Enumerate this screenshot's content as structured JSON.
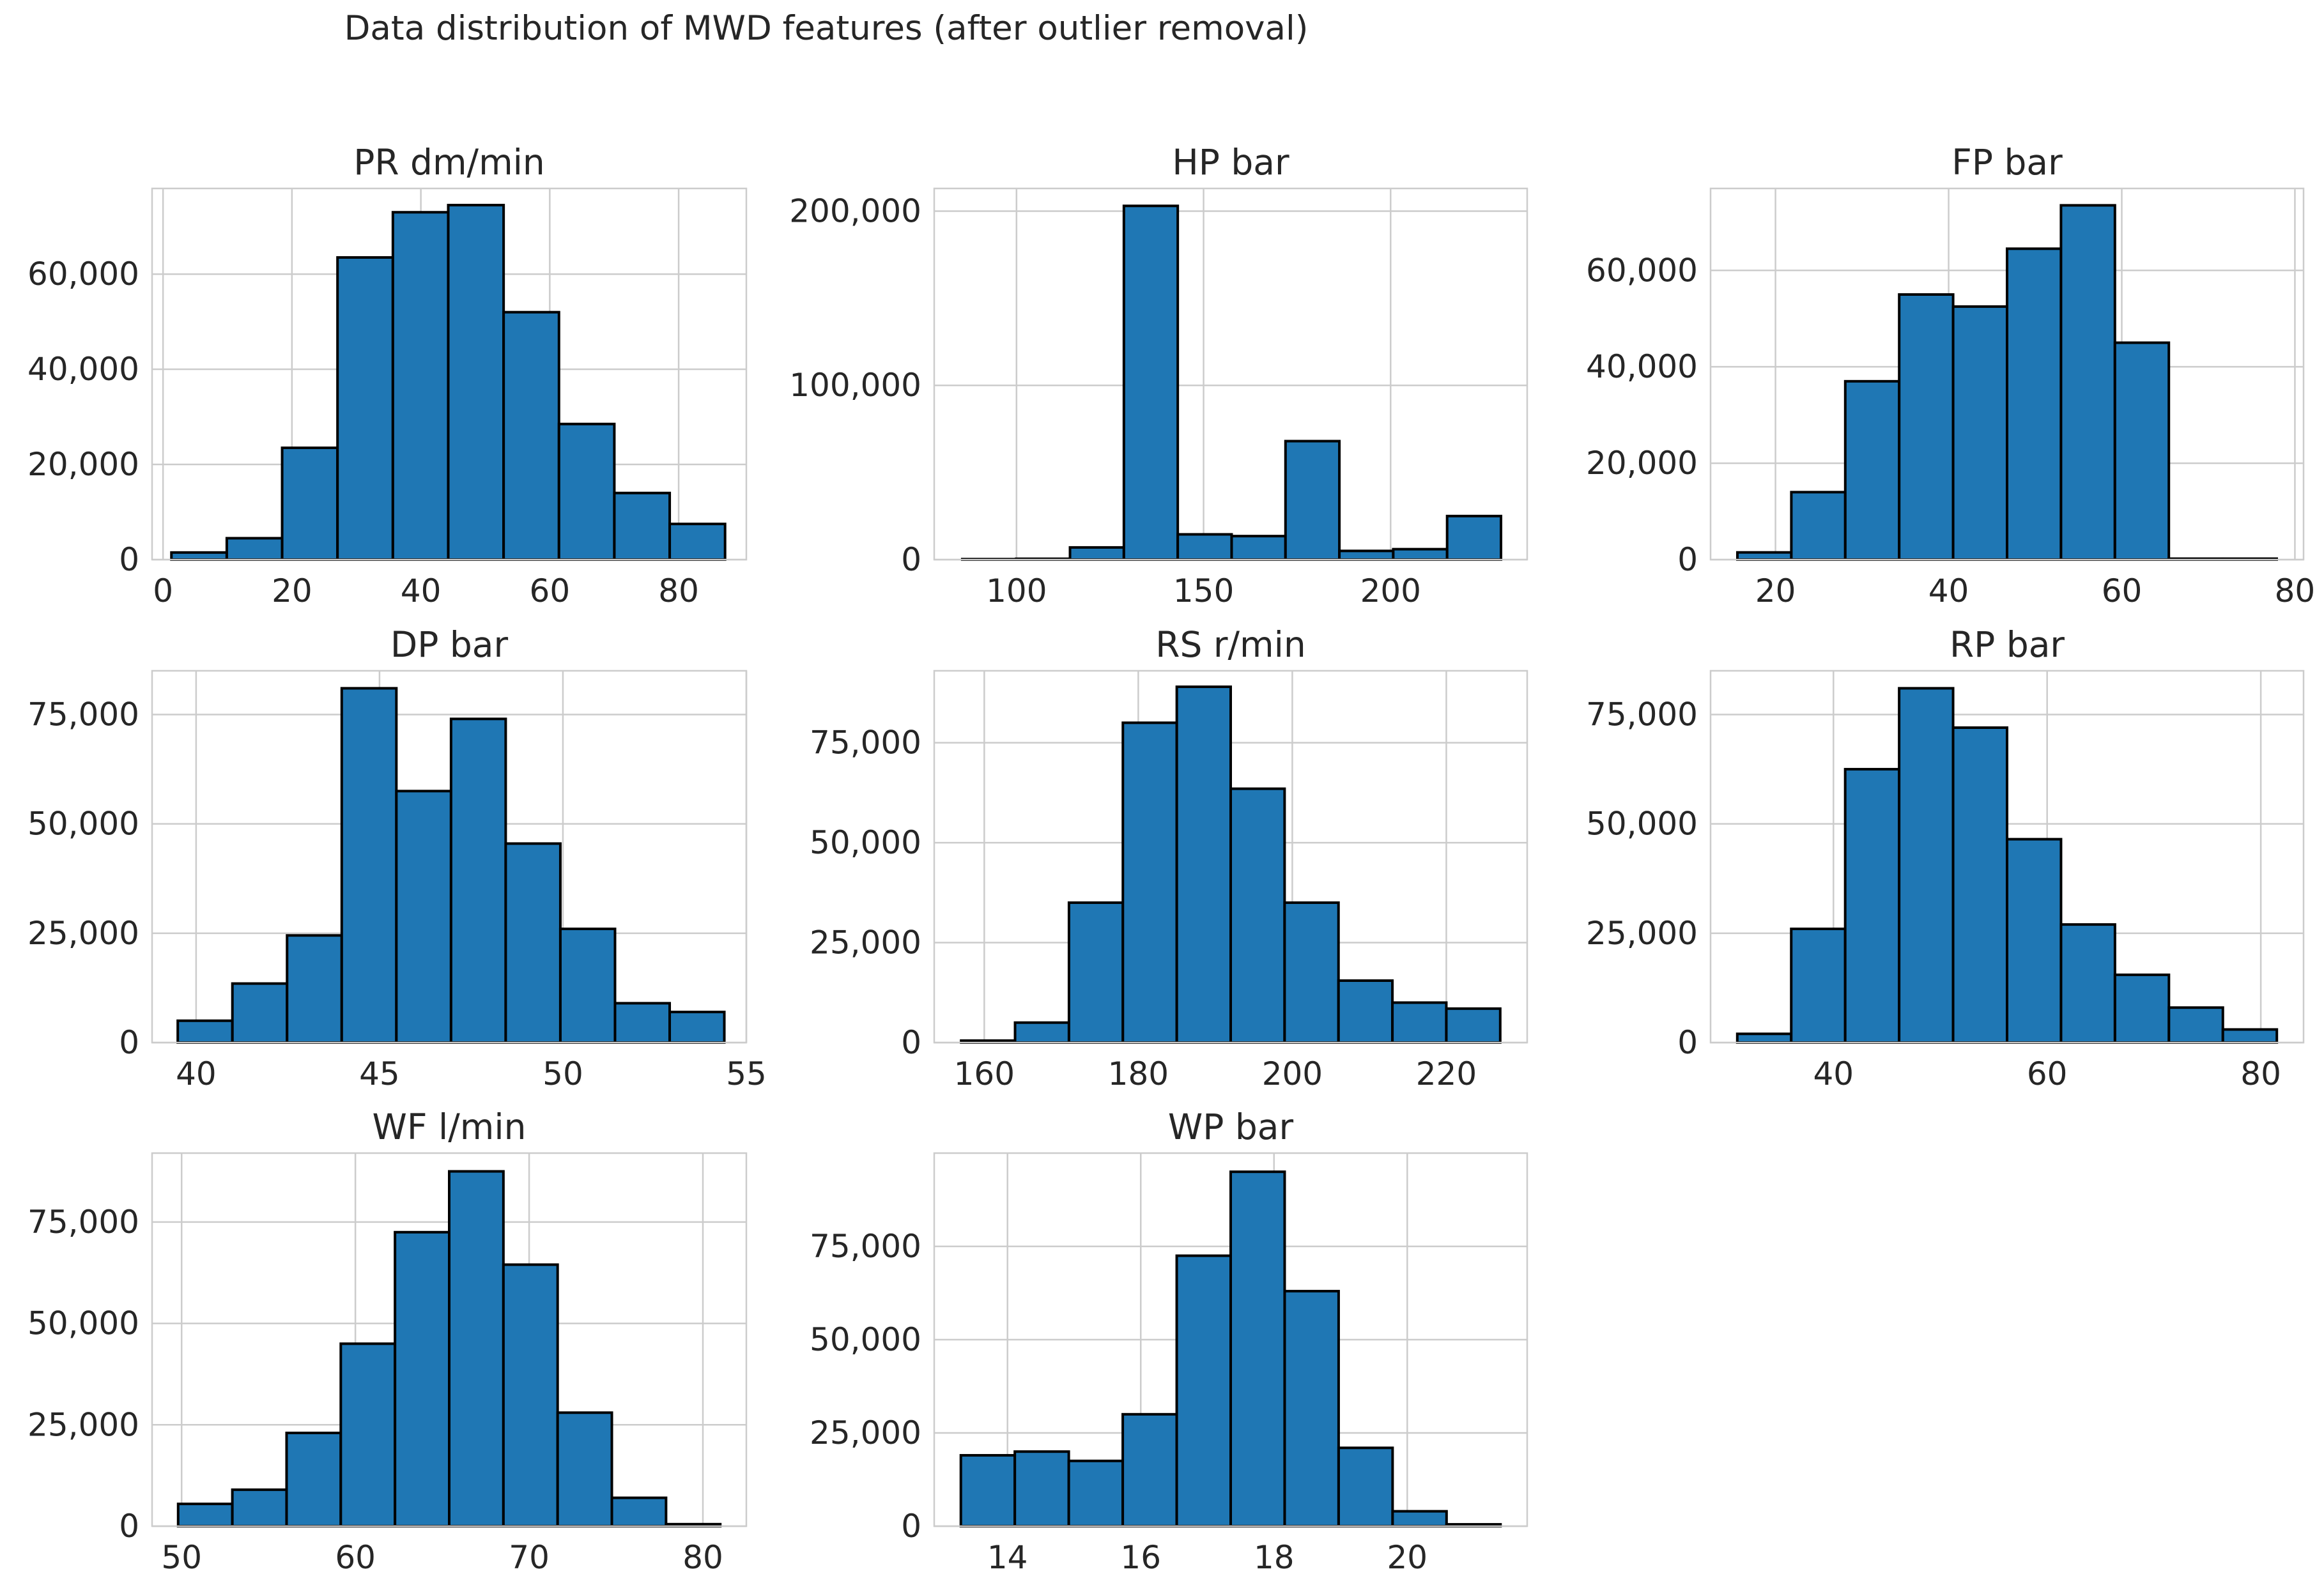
{
  "chart_data": {
    "title": "Data distribution of MWD features (after outlier removal)",
    "charts": [
      {
        "type": "bar",
        "title": "PR dm/min",
        "bin_start": 1.3,
        "bin_width": 8.59,
        "values": [
          1500,
          4500,
          23500,
          63500,
          73000,
          74500,
          52000,
          28500,
          14000,
          7500
        ],
        "xlim": [
          -1.7,
          90.5
        ],
        "ylim": [
          0,
          78000
        ],
        "xticks": [
          0,
          20,
          40,
          60,
          80
        ],
        "yticks": [
          0,
          20000,
          40000,
          60000
        ]
      },
      {
        "type": "bar",
        "title": "HP bar",
        "bin_start": 85.5,
        "bin_width": 14.4,
        "values": [
          300,
          500,
          7000,
          203000,
          14500,
          13500,
          68000,
          5000,
          6000,
          25000
        ],
        "xlim": [
          78,
          236.5
        ],
        "ylim": [
          0,
          213000
        ],
        "xticks": [
          100,
          150,
          200
        ],
        "yticks": [
          0,
          100000,
          200000
        ]
      },
      {
        "type": "bar",
        "title": "FP bar",
        "bin_start": 15.6,
        "bin_width": 6.23,
        "values": [
          1500,
          14000,
          37000,
          55000,
          52500,
          64500,
          73500,
          45000,
          200,
          200
        ],
        "xlim": [
          12.5,
          81
        ],
        "ylim": [
          0,
          77000
        ],
        "xticks": [
          20,
          40,
          60,
          80
        ],
        "yticks": [
          0,
          20000,
          40000,
          60000
        ]
      },
      {
        "type": "bar",
        "title": "DP bar",
        "bin_start": 39.5,
        "bin_width": 1.49,
        "values": [
          5000,
          13500,
          24500,
          81000,
          57500,
          74000,
          45500,
          26000,
          9000,
          7000
        ],
        "xlim": [
          38.8,
          55.0
        ],
        "ylim": [
          0,
          85000
        ],
        "xticks": [
          40,
          45,
          50,
          55
        ],
        "yticks": [
          0,
          25000,
          50000,
          75000
        ]
      },
      {
        "type": "bar",
        "title": "RS r/min",
        "bin_start": 157,
        "bin_width": 7.0,
        "values": [
          500,
          5000,
          35000,
          80000,
          89000,
          63500,
          35000,
          15500,
          10000,
          8500
        ],
        "xlim": [
          153.5,
          230.5
        ],
        "ylim": [
          0,
          93000
        ],
        "xticks": [
          160,
          180,
          200,
          220
        ],
        "yticks": [
          0,
          25000,
          50000,
          75000
        ]
      },
      {
        "type": "bar",
        "title": "RP bar",
        "bin_start": 31.0,
        "bin_width": 5.05,
        "values": [
          2000,
          26000,
          62500,
          81000,
          72000,
          46500,
          27000,
          15500,
          8000,
          3000
        ],
        "xlim": [
          28.5,
          84.0
        ],
        "ylim": [
          0,
          85000
        ],
        "xticks": [
          40,
          60,
          80
        ],
        "yticks": [
          0,
          25000,
          50000,
          75000
        ]
      },
      {
        "type": "bar",
        "title": "WF l/min",
        "bin_start": 49.8,
        "bin_width": 3.12,
        "values": [
          5500,
          9000,
          23000,
          45000,
          72500,
          87500,
          64500,
          28000,
          7000,
          500
        ],
        "xlim": [
          48.3,
          82.5
        ],
        "ylim": [
          0,
          92000
        ],
        "xticks": [
          50,
          60,
          70,
          80
        ],
        "yticks": [
          0,
          25000,
          50000,
          75000
        ]
      },
      {
        "type": "bar",
        "title": "WP bar",
        "bin_start": 13.3,
        "bin_width": 0.81,
        "values": [
          19000,
          20000,
          17500,
          30000,
          72500,
          95000,
          63000,
          21000,
          4000,
          500
        ],
        "xlim": [
          12.9,
          21.8
        ],
        "ylim": [
          0,
          100000
        ],
        "xticks": [
          14,
          16,
          18,
          20
        ],
        "yticks": [
          0,
          25000,
          50000,
          75000
        ]
      }
    ]
  }
}
